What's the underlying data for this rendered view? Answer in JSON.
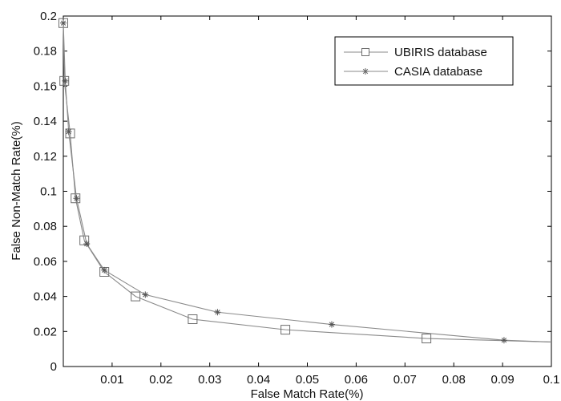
{
  "chart_data": {
    "type": "line",
    "xlabel": "False Match Rate(%)",
    "ylabel": "False Non-Match Rate(%)",
    "xlim": [
      0,
      0.1
    ],
    "ylim": [
      0,
      0.2
    ],
    "x_ticks": [
      0.01,
      0.02,
      0.03,
      0.04,
      0.05,
      0.06,
      0.07,
      0.08,
      0.09,
      0.1
    ],
    "x_tick_labels": [
      "0.01",
      "0.02",
      "0.03",
      "0.04",
      "0.05",
      "0.06",
      "0.07",
      "0.08",
      "0.09",
      "0.1"
    ],
    "y_ticks": [
      0,
      0.02,
      0.04,
      0.06,
      0.08,
      0.1,
      0.12,
      0.14,
      0.16,
      0.18,
      0.2
    ],
    "y_tick_labels": [
      "0",
      "0.02",
      "0.04",
      "0.06",
      "0.08",
      "0.1",
      "0.12",
      "0.14",
      "0.16",
      "0.18",
      "0.2"
    ],
    "grid": false,
    "legend_position": "top-right",
    "series": [
      {
        "name": "UBIRIS database",
        "marker": "square",
        "color": "#8a8a8a",
        "points": [
          {
            "x": 0,
            "y": 0.196
          },
          {
            "x": 0.0002,
            "y": 0.163
          },
          {
            "x": 0.0014,
            "y": 0.133
          },
          {
            "x": 0.0025,
            "y": 0.096
          },
          {
            "x": 0.0043,
            "y": 0.072
          },
          {
            "x": 0.0084,
            "y": 0.054
          },
          {
            "x": 0.0148,
            "y": 0.04
          },
          {
            "x": 0.0265,
            "y": 0.027
          },
          {
            "x": 0.0455,
            "y": 0.021
          },
          {
            "x": 0.0744,
            "y": 0.016
          },
          {
            "x": 0.1,
            "y": 0.014
          }
        ]
      },
      {
        "name": "CASIA database",
        "marker": "star",
        "color": "#8a8a8a",
        "points": [
          {
            "x": 0,
            "y": 0.196
          },
          {
            "x": 0.0004,
            "y": 0.163
          },
          {
            "x": 0.0011,
            "y": 0.134
          },
          {
            "x": 0.0027,
            "y": 0.096
          },
          {
            "x": 0.0048,
            "y": 0.07
          },
          {
            "x": 0.0084,
            "y": 0.055
          },
          {
            "x": 0.0168,
            "y": 0.041
          },
          {
            "x": 0.0316,
            "y": 0.031
          },
          {
            "x": 0.055,
            "y": 0.024
          },
          {
            "x": 0.0903,
            "y": 0.015
          },
          {
            "x": 0.1,
            "y": 0.014
          }
        ]
      }
    ]
  }
}
